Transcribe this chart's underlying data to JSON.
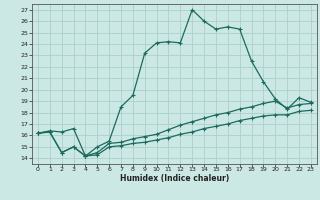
{
  "title": "",
  "xlabel": "Humidex (Indice chaleur)",
  "ylabel": "",
  "bg_color": "#cce8e4",
  "grid_color": "#aacfcc",
  "line_color": "#1a6b5e",
  "xlim": [
    -0.5,
    23.5
  ],
  "ylim": [
    13.5,
    27.5
  ],
  "xticks": [
    0,
    1,
    2,
    3,
    4,
    5,
    6,
    7,
    8,
    9,
    10,
    11,
    12,
    13,
    14,
    15,
    16,
    17,
    18,
    19,
    20,
    21,
    22,
    23
  ],
  "yticks": [
    14,
    15,
    16,
    17,
    18,
    19,
    20,
    21,
    22,
    23,
    24,
    25,
    26,
    27
  ],
  "series1_x": [
    0,
    1,
    2,
    3,
    4,
    5,
    6,
    7,
    8,
    9,
    10,
    11,
    12,
    13,
    14,
    15,
    16,
    17,
    18,
    19,
    20,
    21,
    22,
    23
  ],
  "series1_y": [
    16.2,
    16.4,
    16.3,
    16.6,
    14.2,
    15.0,
    15.5,
    18.5,
    19.5,
    23.2,
    24.1,
    24.2,
    24.1,
    27.0,
    26.0,
    25.3,
    25.5,
    25.3,
    22.5,
    20.7,
    19.2,
    18.3,
    19.3,
    18.9
  ],
  "series2_x": [
    0,
    1,
    2,
    3,
    4,
    5,
    6,
    7,
    8,
    9,
    10,
    11,
    12,
    13,
    14,
    15,
    16,
    17,
    18,
    19,
    20,
    21,
    22,
    23
  ],
  "series2_y": [
    16.2,
    16.3,
    14.5,
    15.0,
    14.2,
    14.5,
    15.3,
    15.4,
    15.7,
    15.9,
    16.1,
    16.5,
    16.9,
    17.2,
    17.5,
    17.8,
    18.0,
    18.3,
    18.5,
    18.8,
    19.0,
    18.4,
    18.7,
    18.8
  ],
  "series3_x": [
    0,
    1,
    2,
    3,
    4,
    5,
    6,
    7,
    8,
    9,
    10,
    11,
    12,
    13,
    14,
    15,
    16,
    17,
    18,
    19,
    20,
    21,
    22,
    23
  ],
  "series3_y": [
    16.2,
    16.3,
    14.5,
    15.0,
    14.2,
    14.3,
    15.0,
    15.1,
    15.3,
    15.4,
    15.6,
    15.8,
    16.1,
    16.3,
    16.6,
    16.8,
    17.0,
    17.3,
    17.5,
    17.7,
    17.8,
    17.8,
    18.1,
    18.2
  ]
}
